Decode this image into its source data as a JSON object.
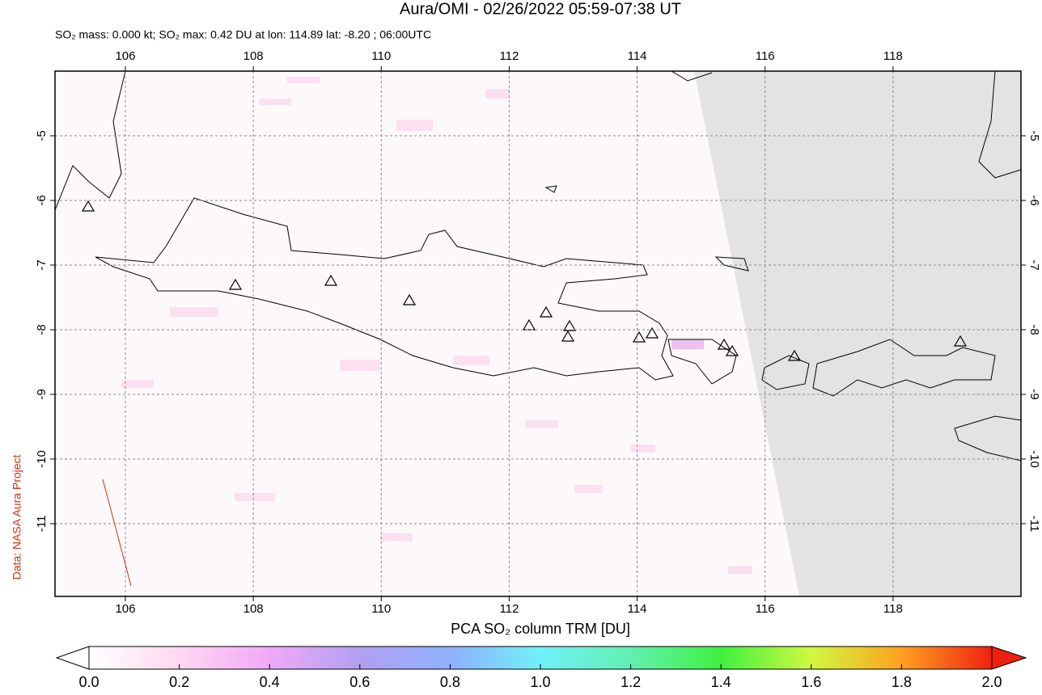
{
  "header": {
    "title": "Aura/OMI - 02/26/2022 05:59-07:38 UT",
    "subtitle": "SO₂ mass: 0.000 kt; SO₂ max: 0.42 DU at lon: 114.89 lat: -8.20 ; 06:00UTC"
  },
  "map": {
    "lon_range": [
      104.9,
      120
    ],
    "lat_range": [
      -12.125,
      -4
    ],
    "lon_ticks": [
      106,
      108,
      110,
      112,
      114,
      116,
      118
    ],
    "lat_ticks": [
      -5,
      -6,
      -7,
      -8,
      -9,
      -10,
      -11
    ]
  },
  "colorbar": {
    "title": "PCA SO₂ column TRM [DU]",
    "range": [
      0,
      2
    ],
    "ticks": [
      {
        "value": 0,
        "label": "0.0"
      },
      {
        "value": 0.2,
        "label": "0.2"
      },
      {
        "value": 0.4,
        "label": "0.4"
      },
      {
        "value": 0.6,
        "label": "0.6"
      },
      {
        "value": 0.8,
        "label": "0.8"
      },
      {
        "value": 1,
        "label": "1.0"
      },
      {
        "value": 1.2,
        "label": "1.2"
      },
      {
        "value": 1.4,
        "label": "1.4"
      },
      {
        "value": 1.6,
        "label": "1.6"
      },
      {
        "value": 1.8,
        "label": "1.8"
      },
      {
        "value": 2,
        "label": "2.0"
      }
    ]
  },
  "credit": "Data: NASA Aura Project"
}
